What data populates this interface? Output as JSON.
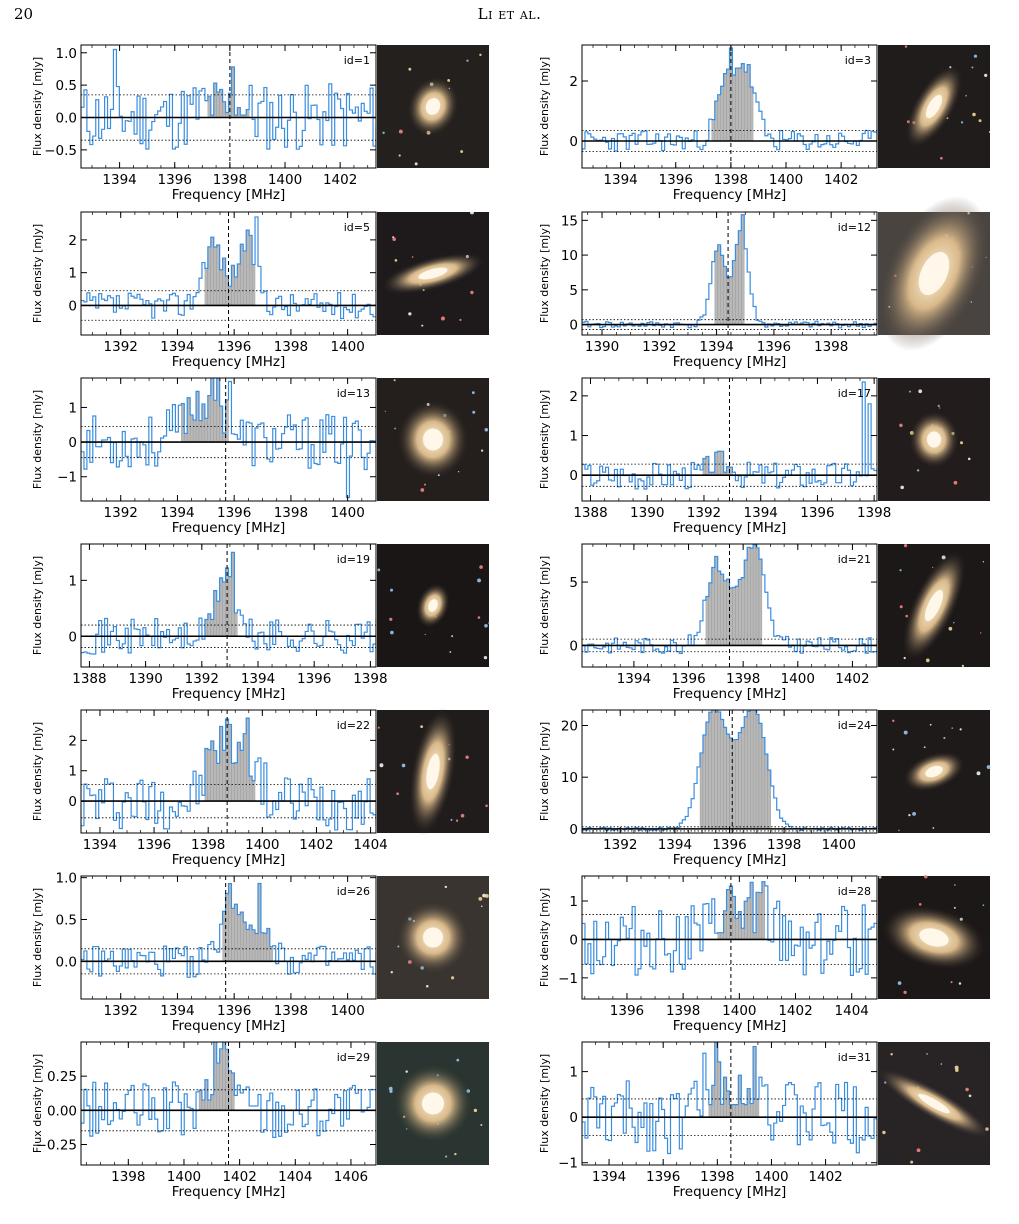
{
  "page": {
    "number": "20",
    "running_head": "Li et al."
  },
  "axis_labels": {
    "x": "Frequency [MHz]",
    "y": "Flux density [mJy]"
  },
  "colors": {
    "spectrum": "#3a8ee0",
    "fill": "#b8b8b8",
    "axis": "#000000"
  },
  "chart_data": [
    {
      "type": "line",
      "id_label": "id=1",
      "xlim": [
        1392.6,
        1403.3
      ],
      "ylim": [
        -0.78,
        1.12
      ],
      "xticks": [
        1394,
        1396,
        1398,
        1400,
        1402
      ],
      "yticks": [
        -0.5,
        0.0,
        0.5,
        1.0
      ],
      "ytick_labels": [
        "−0.5",
        "0.0",
        "0.5",
        "1.0"
      ],
      "rms": 0.35,
      "center": 1398.0,
      "fill_range": [
        1397.1,
        1398.7
      ],
      "profile": [
        {
          "c": 1397.1,
          "w": 0.4,
          "a": 0.15
        },
        {
          "c": 1398.3,
          "w": 0.4,
          "a": 0.15
        }
      ],
      "noise": 0.33,
      "seed": 11,
      "spikes": [
        {
          "x": 1393.8,
          "y": 1.05
        },
        {
          "x": 1398.1,
          "y": 0.78
        }
      ],
      "image": {
        "galaxy_rx": 14,
        "galaxy_ry": 17,
        "angle": 20,
        "bg": "#24201e"
      }
    },
    {
      "type": "line",
      "id_label": "id=3",
      "xlim": [
        1392.6,
        1403.3
      ],
      "ylim": [
        -0.9,
        3.2
      ],
      "xticks": [
        1394,
        1396,
        1398,
        1400,
        1402
      ],
      "yticks": [
        0,
        2
      ],
      "ytick_labels": [
        "0",
        "2"
      ],
      "rms": 0.35,
      "center": 1398.0,
      "fill_range": [
        1397.3,
        1398.9
      ],
      "profile": [
        {
          "c": 1397.8,
          "w": 0.35,
          "a": 1.9
        },
        {
          "c": 1398.5,
          "w": 0.35,
          "a": 2.2
        }
      ],
      "noise": 0.22,
      "seed": 23,
      "spikes": [
        {
          "x": 1398.0,
          "y": 3.1
        }
      ],
      "image": {
        "galaxy_rx": 11,
        "galaxy_ry": 26,
        "angle": 30,
        "bg": "#201c1c"
      }
    },
    {
      "type": "line",
      "id_label": "id=5",
      "xlim": [
        1390.6,
        1401.0
      ],
      "ylim": [
        -0.9,
        2.85
      ],
      "xticks": [
        1392,
        1394,
        1396,
        1398,
        1400
      ],
      "yticks": [
        0,
        1,
        2
      ],
      "ytick_labels": [
        "0",
        "1",
        "2"
      ],
      "rms": 0.45,
      "center": 1395.8,
      "fill_range": [
        1394.9,
        1396.8
      ],
      "profile": [
        {
          "c": 1395.2,
          "w": 0.35,
          "a": 1.9
        },
        {
          "c": 1396.4,
          "w": 0.35,
          "a": 1.9
        }
      ],
      "noise": 0.25,
      "seed": 37,
      "spikes": [
        {
          "x": 1396.7,
          "y": 2.7
        }
      ],
      "image": {
        "galaxy_rx": 30,
        "galaxy_ry": 9,
        "angle": -15,
        "bg": "#1e1a1c"
      }
    },
    {
      "type": "line",
      "id_label": "id=12",
      "xlim": [
        1389.3,
        1399.6
      ],
      "ylim": [
        -1.5,
        16.2
      ],
      "xticks": [
        1390,
        1392,
        1394,
        1396,
        1398
      ],
      "yticks": [
        0,
        5,
        10,
        15
      ],
      "ytick_labels": [
        "0",
        "5",
        "10",
        "15"
      ],
      "rms": 0.7,
      "center": 1394.4,
      "fill_range": [
        1393.9,
        1395.0
      ],
      "profile": [
        {
          "c": 1394.0,
          "w": 0.25,
          "a": 11
        },
        {
          "c": 1394.8,
          "w": 0.25,
          "a": 13.5
        }
      ],
      "noise": 0.3,
      "seed": 41,
      "spikes": [
        {
          "x": 1394.9,
          "y": 15.8
        }
      ],
      "image": {
        "galaxy_rx": 26,
        "galaxy_ry": 46,
        "angle": 25,
        "bg": "#4a4440"
      }
    },
    {
      "type": "line",
      "id_label": "id=13",
      "xlim": [
        1390.6,
        1401.0
      ],
      "ylim": [
        -1.7,
        1.85
      ],
      "xticks": [
        1392,
        1394,
        1396,
        1398,
        1400
      ],
      "yticks": [
        -1,
        0,
        1
      ],
      "ytick_labels": [
        "−1",
        "0",
        "1"
      ],
      "rms": 0.45,
      "center": 1395.7,
      "fill_range": [
        1394.1,
        1395.9
      ],
      "profile": [
        {
          "c": 1394.6,
          "w": 0.5,
          "a": 1.0
        },
        {
          "c": 1395.4,
          "w": 0.4,
          "a": 1.0
        }
      ],
      "noise": 0.5,
      "seed": 53,
      "spikes": [
        {
          "x": 1395.8,
          "y": 1.75
        },
        {
          "x": 1400.0,
          "y": -1.6
        }
      ],
      "image": {
        "galaxy_rx": 20,
        "galaxy_ry": 22,
        "angle": 0,
        "bg": "#241f1d"
      }
    },
    {
      "type": "line",
      "id_label": "id=17",
      "xlim": [
        1387.7,
        1398.1
      ],
      "ylim": [
        -0.65,
        2.45
      ],
      "xticks": [
        1388,
        1390,
        1392,
        1394,
        1396,
        1398
      ],
      "yticks": [
        0,
        1,
        2
      ],
      "ytick_labels": [
        "0",
        "1",
        "2"
      ],
      "rms": 0.28,
      "center": 1392.9,
      "fill_range": [
        1391.9,
        1393.1
      ],
      "profile": [
        {
          "c": 1392.5,
          "w": 0.4,
          "a": 0.3
        }
      ],
      "noise": 0.22,
      "seed": 67,
      "spikes": [
        {
          "x": 1397.6,
          "y": 2.35
        },
        {
          "x": 1397.8,
          "y": 1.8
        }
      ],
      "image": {
        "galaxy_rx": 14,
        "galaxy_ry": 16,
        "angle": 0,
        "bg": "#221c1c"
      }
    },
    {
      "type": "line",
      "id_label": "id=19",
      "xlim": [
        1387.7,
        1398.2
      ],
      "ylim": [
        -0.55,
        1.65
      ],
      "xticks": [
        1388,
        1390,
        1392,
        1394,
        1396,
        1398
      ],
      "yticks": [
        0,
        1
      ],
      "ytick_labels": [
        "0",
        "1"
      ],
      "rms": 0.2,
      "center": 1392.9,
      "fill_range": [
        1392.1,
        1393.3
      ],
      "profile": [
        {
          "c": 1392.8,
          "w": 0.3,
          "a": 1.2
        }
      ],
      "noise": 0.2,
      "seed": 71,
      "spikes": [
        {
          "x": 1393.1,
          "y": 1.5
        }
      ],
      "image": {
        "galaxy_rx": 9,
        "galaxy_ry": 13,
        "angle": 20,
        "bg": "#1a1616"
      }
    },
    {
      "type": "line",
      "id_label": "id=21",
      "xlim": [
        1392.1,
        1402.9
      ],
      "ylim": [
        -1.7,
        8.0
      ],
      "xticks": [
        1394,
        1396,
        1398,
        1400,
        1402
      ],
      "yticks": [
        0,
        5
      ],
      "ytick_labels": [
        "0",
        "5"
      ],
      "rms": 0.5,
      "center": 1397.5,
      "fill_range": [
        1396.6,
        1398.7
      ],
      "profile": [
        {
          "c": 1396.9,
          "w": 0.35,
          "a": 5.2
        },
        {
          "c": 1397.8,
          "w": 0.6,
          "a": 3.6
        },
        {
          "c": 1398.4,
          "w": 0.35,
          "a": 5.6
        }
      ],
      "noise": 0.4,
      "seed": 83,
      "spikes": [
        {
          "x": 1398.5,
          "y": 7.7
        }
      ],
      "image": {
        "galaxy_rx": 12,
        "galaxy_ry": 34,
        "angle": 25,
        "bg": "#1c1818"
      }
    },
    {
      "type": "line",
      "id_label": "id=22",
      "xlim": [
        1393.3,
        1404.2
      ],
      "ylim": [
        -1.05,
        3.0
      ],
      "xticks": [
        1394,
        1396,
        1398,
        1400,
        1402,
        1404
      ],
      "yticks": [
        0,
        1,
        2
      ],
      "ytick_labels": [
        "0",
        "1",
        "2"
      ],
      "rms": 0.55,
      "center": 1398.7,
      "fill_range": [
        1397.8,
        1399.8
      ],
      "profile": [
        {
          "c": 1398.3,
          "w": 0.4,
          "a": 1.8
        },
        {
          "c": 1399.3,
          "w": 0.4,
          "a": 2.0
        }
      ],
      "noise": 0.6,
      "seed": 97,
      "spikes": [
        {
          "x": 1398.6,
          "y": 2.7
        }
      ],
      "image": {
        "galaxy_rx": 12,
        "galaxy_ry": 36,
        "angle": 10,
        "bg": "#201c1c"
      }
    },
    {
      "type": "line",
      "id_label": "id=24",
      "xlim": [
        1390.6,
        1401.4
      ],
      "ylim": [
        -0.8,
        23.0
      ],
      "xticks": [
        1392,
        1394,
        1396,
        1398,
        1400
      ],
      "yticks": [
        0,
        10,
        20
      ],
      "ytick_labels": [
        "0",
        "10",
        "20"
      ],
      "rms": 0.4,
      "center": 1396.1,
      "fill_range": [
        1394.9,
        1397.6
      ],
      "profile": [
        {
          "c": 1395.3,
          "w": 0.45,
          "a": 19.5
        },
        {
          "c": 1396.1,
          "w": 0.6,
          "a": 9
        },
        {
          "c": 1396.9,
          "w": 0.45,
          "a": 19.5
        }
      ],
      "noise": 0.2,
      "seed": 101,
      "spikes": [],
      "image": {
        "galaxy_rx": 18,
        "galaxy_ry": 10,
        "angle": -20,
        "bg": "#1e1a1a"
      }
    },
    {
      "type": "line",
      "id_label": "id=26",
      "xlim": [
        1390.6,
        1401.0
      ],
      "ylim": [
        -0.45,
        1.02
      ],
      "xticks": [
        1392,
        1394,
        1396,
        1398,
        1400
      ],
      "yticks": [
        0.0,
        0.5,
        1.0
      ],
      "ytick_labels": [
        "0.0",
        "0.5",
        "1.0"
      ],
      "rms": 0.15,
      "center": 1395.7,
      "fill_range": [
        1395.5,
        1397.4
      ],
      "profile": [
        {
          "c": 1395.8,
          "w": 0.3,
          "a": 0.7
        },
        {
          "c": 1396.7,
          "w": 0.5,
          "a": 0.45
        }
      ],
      "noise": 0.12,
      "seed": 109,
      "spikes": [
        {
          "x": 1396.8,
          "y": 0.93
        }
      ],
      "image": {
        "galaxy_rx": 20,
        "galaxy_ry": 20,
        "angle": 0,
        "bg": "#3a3430"
      }
    },
    {
      "type": "line",
      "id_label": "id=28",
      "xlim": [
        1394.4,
        1404.9
      ],
      "ylim": [
        -1.55,
        1.65
      ],
      "xticks": [
        1396,
        1398,
        1400,
        1402,
        1404
      ],
      "yticks": [
        -1,
        0,
        1
      ],
      "ytick_labels": [
        "−1",
        "0",
        "1"
      ],
      "rms": 0.65,
      "center": 1399.7,
      "fill_range": [
        1399.2,
        1401.0
      ],
      "profile": [
        {
          "c": 1399.6,
          "w": 0.35,
          "a": 0.7
        },
        {
          "c": 1400.6,
          "w": 0.35,
          "a": 0.8
        }
      ],
      "noise": 0.6,
      "seed": 113,
      "spikes": [
        {
          "x": 1400.8,
          "y": 1.5
        }
      ],
      "image": {
        "galaxy_rx": 30,
        "galaxy_ry": 17,
        "angle": 15,
        "bg": "#1c1818"
      }
    },
    {
      "type": "line",
      "id_label": "id=29",
      "xlim": [
        1396.3,
        1406.9
      ],
      "ylim": [
        -0.4,
        0.5
      ],
      "xticks": [
        1398,
        1400,
        1402,
        1404,
        1406
      ],
      "yticks": [
        -0.25,
        0.0,
        0.25
      ],
      "ytick_labels": [
        "−0.25",
        "0.00",
        "0.25"
      ],
      "rms": 0.15,
      "center": 1401.6,
      "fill_range": [
        1400.5,
        1401.9
      ],
      "profile": [
        {
          "c": 1401.2,
          "w": 0.3,
          "a": 0.3
        },
        {
          "c": 1401.6,
          "w": 0.3,
          "a": 0.25
        }
      ],
      "noise": 0.13,
      "seed": 127,
      "spikes": [
        {
          "x": 1401.3,
          "y": 0.45
        }
      ],
      "image": {
        "galaxy_rx": 22,
        "galaxy_ry": 22,
        "angle": 0,
        "bg": "#2a3430"
      }
    },
    {
      "type": "line",
      "id_label": "id=31",
      "xlim": [
        1393.0,
        1403.9
      ],
      "ylim": [
        -1.05,
        1.65
      ],
      "xticks": [
        1394,
        1396,
        1398,
        1400,
        1402
      ],
      "yticks": [
        -1,
        0,
        1
      ],
      "ytick_labels": [
        "−1",
        "0",
        "1"
      ],
      "rms": 0.4,
      "center": 1398.5,
      "fill_range": [
        1397.6,
        1399.6
      ],
      "profile": [
        {
          "c": 1397.8,
          "w": 0.35,
          "a": 1.1
        },
        {
          "c": 1399.3,
          "w": 0.35,
          "a": 1.1
        }
      ],
      "noise": 0.5,
      "seed": 131,
      "spikes": [
        {
          "x": 1399.3,
          "y": 1.55
        }
      ],
      "image": {
        "galaxy_rx": 36,
        "galaxy_ry": 8,
        "angle": 30,
        "bg": "#282426"
      }
    }
  ]
}
